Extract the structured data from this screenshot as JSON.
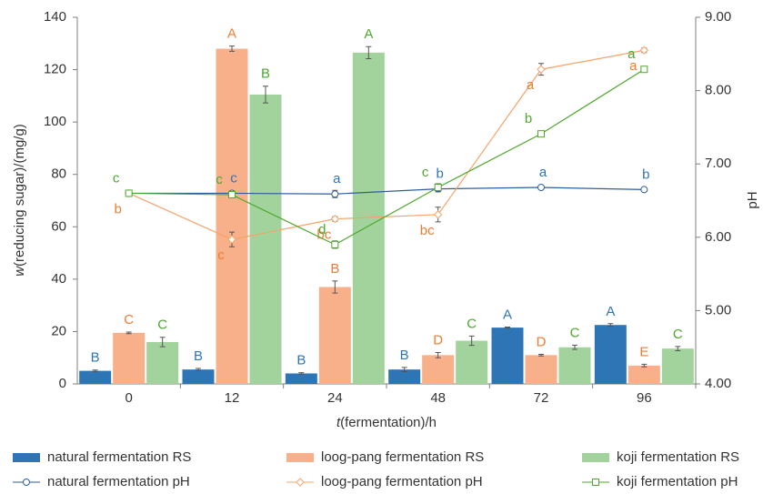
{
  "chart_data": {
    "type": "combo",
    "ylabel_var": "w",
    "ylabel": "(reducing sugar)/(mg/g)",
    "xlabel_var": "t",
    "xlabel": "(fermentation)/h",
    "y2label": "pH",
    "categories": [
      "0",
      "12",
      "24",
      "48",
      "72",
      "96"
    ],
    "ylim": [
      0,
      140
    ],
    "yticks": [
      0,
      20,
      40,
      60,
      80,
      100,
      120,
      140
    ],
    "y2lim": [
      4,
      9
    ],
    "y2ticks": [
      {
        "value": 4,
        "label": "4.00"
      },
      {
        "value": 5,
        "label": "5.00"
      },
      {
        "value": 6,
        "label": "6.00"
      },
      {
        "value": 7,
        "label": "7.00"
      },
      {
        "value": 8,
        "label": "8.00"
      },
      {
        "value": 9,
        "label": "9.00"
      }
    ],
    "series": [
      {
        "name": "natural fermentation RS",
        "type": "bar",
        "color": "#2e75b6",
        "label_color": "#2e75b6",
        "values": [
          5,
          5.5,
          4,
          5.5,
          21.5,
          22.5
        ],
        "errors": [
          0.3,
          0.4,
          0.3,
          0.8,
          0.2,
          0.5
        ],
        "letters": [
          "B",
          "B",
          "B",
          "B",
          "A",
          "A"
        ]
      },
      {
        "name": "loog-pang fermentation RS",
        "type": "bar",
        "color": "#f7b08a",
        "label_color": "#ed7d31",
        "values": [
          19.5,
          128,
          37,
          11,
          11,
          7
        ],
        "errors": [
          0.3,
          1,
          2.3,
          1,
          0.3,
          0.5
        ],
        "letters": [
          "C",
          "A",
          "B",
          "D",
          "D",
          "E"
        ]
      },
      {
        "name": "koji  fermentation  RS",
        "type": "bar",
        "color": "#a3d39c",
        "label_color": "#4ea72e",
        "values": [
          16,
          110.5,
          126.5,
          16.5,
          14,
          13.5
        ],
        "errors": [
          1.8,
          3.2,
          2.3,
          1.8,
          0.8,
          0.8
        ],
        "letters": [
          "C",
          "B",
          "A",
          "C",
          "C",
          "C"
        ]
      },
      {
        "name": "natural fermentation pH",
        "type": "line",
        "axis": "y2",
        "marker": "circle",
        "color": "#2e5e9e",
        "label_color": "#2e75b6",
        "values": [
          6.6,
          6.6,
          6.59,
          6.66,
          6.68,
          6.65
        ],
        "errors": [
          0.02,
          0.03,
          0.05,
          0.04,
          0.02,
          0.02
        ],
        "letters": [
          null,
          "c",
          "a",
          "b",
          "a",
          "b"
        ]
      },
      {
        "name": "loog-pang fermentation pH",
        "type": "line",
        "axis": "y2",
        "marker": "diamond",
        "color": "#f4a46a",
        "label_color": "#ed7d31",
        "values": [
          6.6,
          5.97,
          6.25,
          6.31,
          8.29,
          8.55
        ],
        "errors": [
          0.02,
          0.1,
          0.03,
          0.1,
          0.08,
          0.03
        ],
        "letters": [
          "b",
          "c",
          "bc",
          "bc",
          "a",
          "a"
        ]
      },
      {
        "name": "koji fermentation pH",
        "type": "line",
        "axis": "y2",
        "marker": "square",
        "color": "#4ea72e",
        "label_color": "#4ea72e",
        "values": [
          6.6,
          6.58,
          5.9,
          6.68,
          7.41,
          8.29
        ],
        "errors": [
          0.02,
          0.02,
          0.05,
          0.05,
          0.02,
          0.02
        ],
        "letters": [
          "c",
          "c",
          "d",
          "c",
          "b",
          "a"
        ]
      }
    ]
  }
}
